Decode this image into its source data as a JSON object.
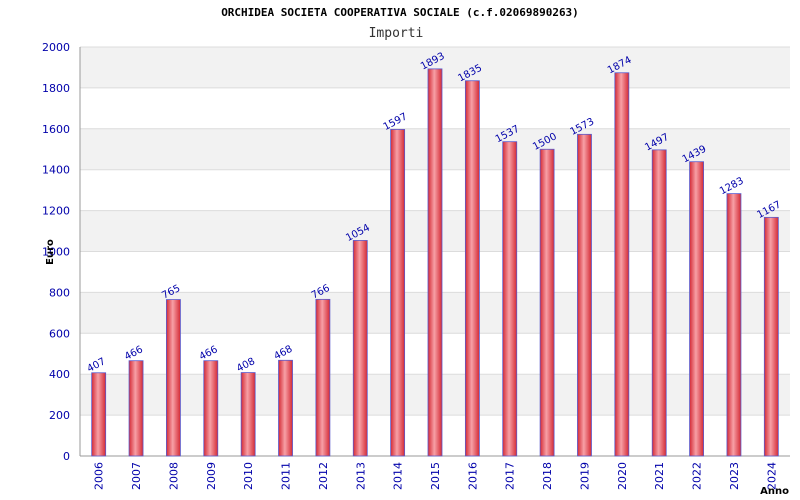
{
  "chart_data": {
    "type": "bar",
    "title": "ORCHIDEA SOCIETA COOPERATIVA SOCIALE (c.f.02069890263)",
    "subtitle": "Importi",
    "ylabel": "Euro",
    "xlabel": "Anno",
    "categories": [
      "2006",
      "2007",
      "2008",
      "2009",
      "2010",
      "2011",
      "2012",
      "2013",
      "2014",
      "2015",
      "2016",
      "2017",
      "2018",
      "2019",
      "2020",
      "2021",
      "2022",
      "2023",
      "2024"
    ],
    "values": [
      407,
      466,
      765,
      466,
      408,
      468,
      766,
      1054,
      1597,
      1893,
      1835,
      1537,
      1500,
      1573,
      1874,
      1497,
      1439,
      1283,
      1167
    ],
    "ylim": [
      0,
      2000
    ],
    "yticks": [
      0,
      200,
      400,
      600,
      800,
      1000,
      1200,
      1400,
      1600,
      1800,
      2000
    ],
    "grid": true,
    "colors": {
      "bar": "#e8404a",
      "bar_highlight": "#f7a0a6",
      "bar_edge": "#5a5acc",
      "label": "#0000aa",
      "band": "#f2f2f2"
    }
  }
}
